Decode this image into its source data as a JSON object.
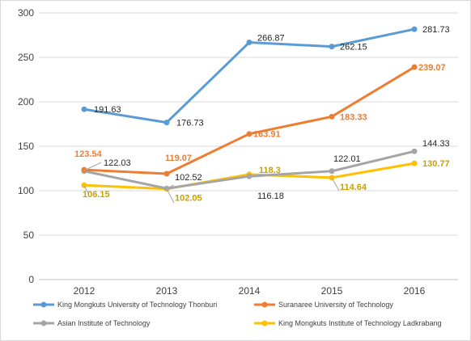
{
  "chart_data": {
    "type": "line",
    "title": "",
    "xlabel": "",
    "ylabel": "",
    "categories": [
      "2012",
      "2013",
      "2014",
      "2015",
      "2016"
    ],
    "ylim": [
      0,
      300
    ],
    "yticks": [
      0,
      50,
      100,
      150,
      200,
      250,
      300
    ],
    "grid": true,
    "legend_position": "bottom",
    "series": [
      {
        "name": "King Mongkuts University of Technology Thonburi",
        "color": "#5B9BD5",
        "values": [
          191.63,
          176.73,
          266.87,
          262.15,
          281.73
        ],
        "labels": [
          "191.63",
          "176.73",
          "266.87",
          "262.15",
          "281.73"
        ],
        "label_color": "#262626",
        "label_bold": false
      },
      {
        "name": "Suranaree University of Technology",
        "color": "#ED7D31",
        "values": [
          123.54,
          119.07,
          163.91,
          183.33,
          239.07
        ],
        "labels": [
          "123.54",
          "119.07",
          "163.91",
          "183.33",
          "239.07"
        ],
        "label_color": "#ED7D31",
        "label_bold": true
      },
      {
        "name": "Asian Institute of Technology",
        "color": "#A5A5A5",
        "values": [
          122.03,
          102.52,
          116.18,
          122.01,
          144.33
        ],
        "labels": [
          "122.03",
          "102.52",
          "116.18",
          "122.01",
          "144.33"
        ],
        "label_color": "#262626",
        "label_bold": false
      },
      {
        "name": "King Mongkuts Institute of Technology Ladkrabang",
        "color": "#FFC000",
        "values": [
          106.15,
          102.05,
          118.3,
          114.64,
          130.77
        ],
        "labels": [
          "106.15",
          "102.05",
          "118.3",
          "114.64",
          "130.77"
        ],
        "label_color": "#C9A100",
        "label_bold": true
      }
    ]
  }
}
